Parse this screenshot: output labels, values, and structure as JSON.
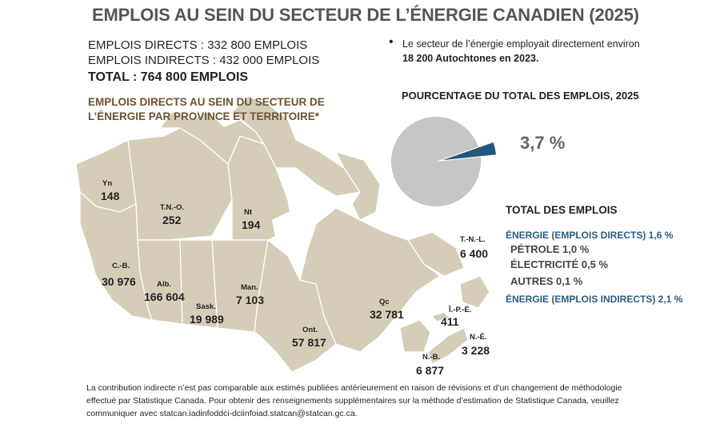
{
  "title": "EMPLOIS AU SEIN DU SECTEUR DE L’ÉNERGIE CANADIEN (2025)",
  "summary": {
    "direct": "EMPLOIS DIRECTS : 332 800 EMPLOIS",
    "indirect": "EMPLOIS INDIRECTS : 432 000 EMPLOIS",
    "total": "TOTAL : 764 800 EMPLOIS"
  },
  "map_heading": "EMPLOIS DIRECTS AU SEIN DU SECTEUR DE L’ÉNERGIE PAR PROVINCE ET TERRITOIRE*",
  "note": {
    "text_before": "Le secteur de l’énergie employait directement environ ",
    "text_bold": "18 200 Autochtones en 2023."
  },
  "pie_title": "POURCENTAGE DU TOTAL DES EMPLOIS, 2025",
  "total_jobs_title": "TOTAL DES EMPLOIS",
  "breakdown": [
    {
      "label": "ÉNERGIE (EMPLOIS DIRECTS) 1,6 %",
      "style": "blue"
    },
    {
      "label": "PÉTROLE 1,0 %",
      "style": "grey"
    },
    {
      "label": "ÉLECTRICITÉ 0,5 %",
      "style": "grey"
    },
    {
      "label": "AUTRES 0,1 %",
      "style": "grey"
    },
    {
      "label": "ÉNERGIE (EMPLOIS INDIRECTS) 2,1 %",
      "style": "blue"
    }
  ],
  "colors": {
    "map_fill": "#d6cdb9",
    "map_stroke": "#ffffff",
    "pie_main": "#c8c6c4",
    "pie_slice": "#24587b",
    "heading_brown": "#6b5230"
  },
  "chart_data": [
    {
      "type": "pie",
      "title": "POURCENTAGE DU TOTAL DES EMPLOIS, 2025",
      "slices": [
        {
          "name": "",
          "value": 96.3
        },
        {
          "name": "",
          "value": 3.7,
          "label": "3,7 %"
        }
      ]
    },
    {
      "type": "map",
      "title": "EMPLOIS DIRECTS AU SEIN DU SECTEUR DE L’ÉNERGIE PAR PROVINCE ET TERRITOIRE*",
      "regions": [
        {
          "abbr": "Yn",
          "value": "148"
        },
        {
          "abbr": "T.N.-O.",
          "value": "252"
        },
        {
          "abbr": "Nt",
          "value": "194"
        },
        {
          "abbr": "C.-B.",
          "value": "30 976"
        },
        {
          "abbr": "Alb.",
          "value": "166 604"
        },
        {
          "abbr": "Sask.",
          "value": "19 989"
        },
        {
          "abbr": "Man.",
          "value": "7 103"
        },
        {
          "abbr": "Ont.",
          "value": "57 817"
        },
        {
          "abbr": "Qc",
          "value": "32 781"
        },
        {
          "abbr": "T.-N.-L.",
          "value": "6 400"
        },
        {
          "abbr": "Î.-P.-É.",
          "value": "411"
        },
        {
          "abbr": "N.-É.",
          "value": "3 228"
        },
        {
          "abbr": "N.-B.",
          "value": "6 877"
        }
      ]
    }
  ],
  "footnote": "La contribution indirecte n’est pas comparable aux estimés publiées antérieurement en raison de révisions et d’un changement de méthodologie effectué par Statistique Canada. Pour obtenir des renseignements supplémentaires sur la méthode d’estimation de Statistique Canada, veuillez communiquer avec statcan.iadinfoddci-dciinfoiad.statcan@statcan.gc.ca."
}
